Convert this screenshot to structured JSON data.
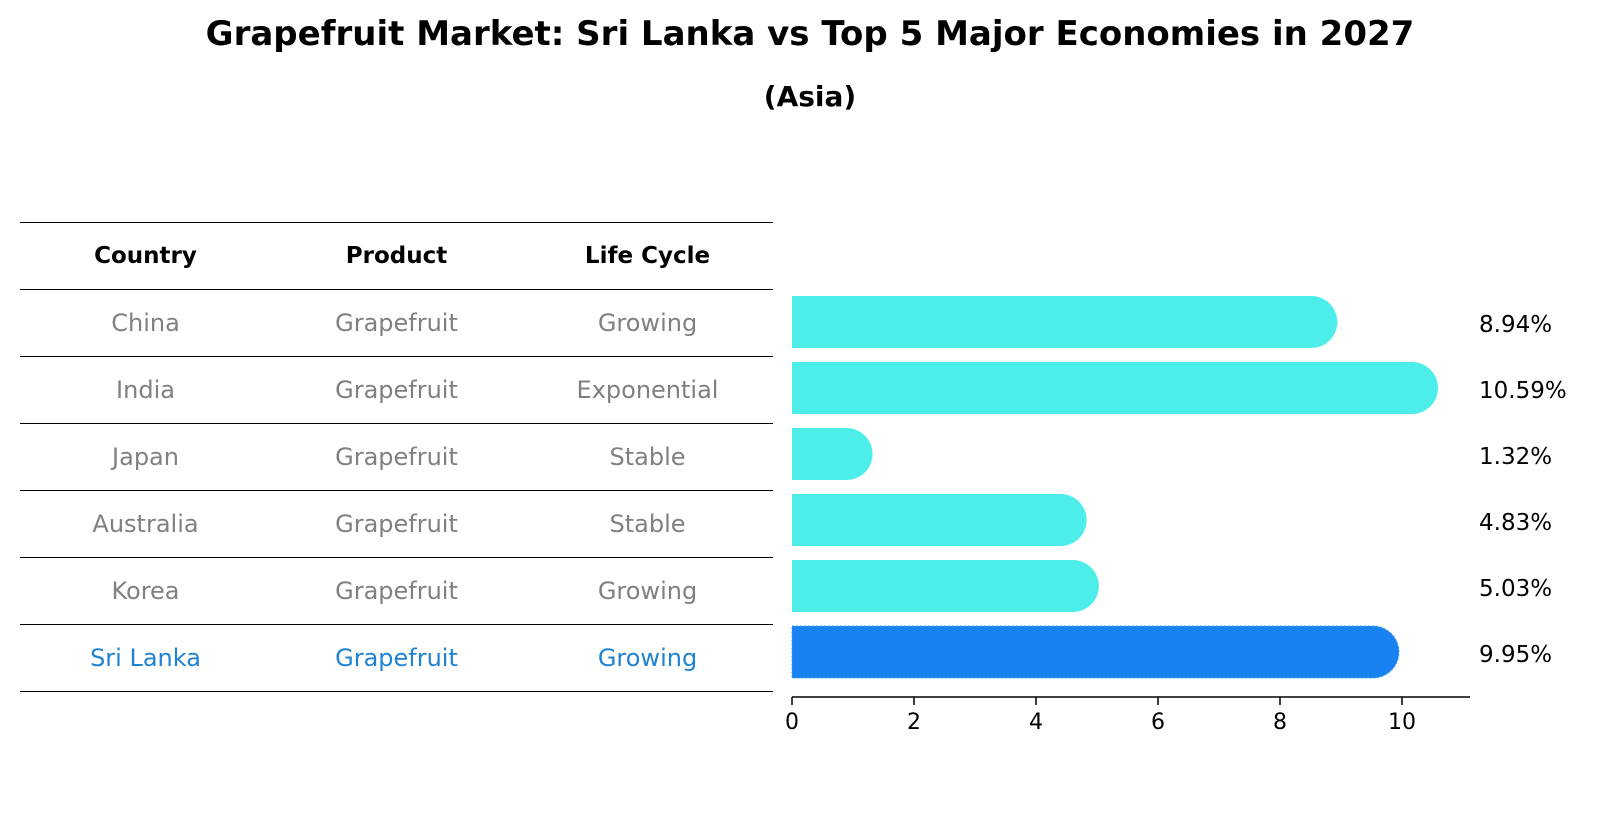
{
  "title": "Grapefruit Market: Sri Lanka vs Top 5 Major Economies in 2027",
  "subtitle": "(Asia)",
  "table": {
    "headers": [
      "Country",
      "Product",
      "Life Cycle"
    ],
    "rows": [
      [
        "China",
        "Grapefruit",
        "Growing"
      ],
      [
        "India",
        "Grapefruit",
        "Exponential"
      ],
      [
        "Japan",
        "Grapefruit",
        "Stable"
      ],
      [
        "Australia",
        "Grapefruit",
        "Stable"
      ],
      [
        "Korea",
        "Grapefruit",
        "Growing"
      ],
      [
        "Sri Lanka",
        "Grapefruit",
        "Growing"
      ]
    ]
  },
  "colors": {
    "bar": "#4deeea",
    "highlight_bar": "#1982f2",
    "highlight_text": "#1f82d2",
    "muted_text": "#808080"
  },
  "chart_data": {
    "type": "bar",
    "orientation": "horizontal",
    "title": "Grapefruit Market: Sri Lanka vs Top 5 Major Economies in 2027",
    "subtitle": "(Asia)",
    "categories": [
      "China",
      "India",
      "Japan",
      "Australia",
      "Korea",
      "Sri Lanka"
    ],
    "values": [
      8.94,
      10.59,
      1.32,
      4.83,
      5.03,
      9.95
    ],
    "value_labels": [
      "8.94%",
      "10.59%",
      "1.32%",
      "4.83%",
      "5.03%",
      "9.95%"
    ],
    "highlight": "Sri Lanka",
    "xlim": [
      0,
      11.1
    ],
    "xticks": [
      0,
      2,
      4,
      6,
      8,
      10
    ],
    "xlabel": "",
    "ylabel": "",
    "grid": false
  }
}
